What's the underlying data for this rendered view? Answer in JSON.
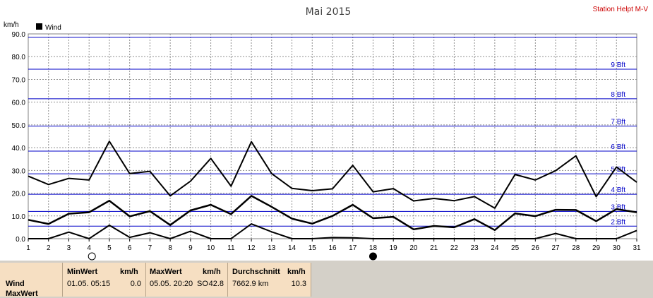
{
  "header": {
    "title": "Mai 2015",
    "station": "Station Helpt M-V",
    "unit": "km/h",
    "legend_label": "Wind"
  },
  "chart_data": {
    "type": "line",
    "title": "Mai 2015",
    "ylabel": "km/h",
    "xlabel": "",
    "ylim": [
      0,
      90
    ],
    "xlim": [
      1,
      31
    ],
    "x": [
      1,
      2,
      3,
      4,
      5,
      6,
      7,
      8,
      9,
      10,
      11,
      12,
      13,
      14,
      15,
      16,
      17,
      18,
      19,
      20,
      21,
      22,
      23,
      24,
      25,
      26,
      27,
      28,
      29,
      30,
      31
    ],
    "y_ticks": [
      "0.0",
      "10.0",
      "20.0",
      "30.0",
      "40.0",
      "50.0",
      "60.0",
      "70.0",
      "80.0",
      "90.0"
    ],
    "x_ticks": [
      "1",
      "2",
      "3",
      "4",
      "5",
      "6",
      "7",
      "8",
      "9",
      "10",
      "11",
      "12",
      "13",
      "14",
      "15",
      "16",
      "17",
      "18",
      "19",
      "20",
      "21",
      "22",
      "23",
      "24",
      "25",
      "26",
      "27",
      "28",
      "29",
      "30",
      "31"
    ],
    "grid": true,
    "legend": "top-left",
    "series": [
      {
        "name": "Wind",
        "role": "max",
        "values": [
          27.5,
          23.8,
          26.5,
          25.8,
          42.8,
          28.6,
          29.6,
          18.8,
          25.3,
          35.3,
          23.1,
          42.6,
          28.6,
          22.1,
          21.1,
          21.9,
          32.2,
          20.6,
          22.0,
          16.6,
          17.7,
          16.7,
          18.5,
          13.4,
          28.2,
          25.8,
          29.9,
          36.4,
          18.5,
          31.5,
          24.8
        ]
      },
      {
        "name": "Wind",
        "role": "avg",
        "values": [
          8.3,
          6.5,
          11.0,
          11.6,
          16.7,
          9.8,
          12.1,
          6.0,
          12.4,
          14.9,
          10.8,
          18.8,
          14.0,
          8.8,
          6.6,
          10.0,
          14.9,
          9.0,
          9.6,
          4.1,
          5.6,
          5.0,
          8.6,
          3.8,
          11.1,
          9.9,
          12.7,
          12.6,
          7.7,
          13.0,
          11.6
        ]
      },
      {
        "name": "Wind",
        "role": "min",
        "values": [
          0.0,
          0.0,
          2.9,
          0.0,
          5.9,
          0.6,
          2.6,
          0.0,
          3.3,
          0.0,
          0.0,
          6.5,
          3.0,
          0.0,
          0.0,
          0.5,
          0.4,
          0.0,
          0.0,
          0.0,
          0.0,
          0.0,
          0.0,
          0.0,
          0.0,
          0.0,
          2.3,
          0.0,
          0.0,
          0.0,
          3.6
        ]
      }
    ],
    "beaufort_lines": [
      {
        "label": "2 Bft",
        "value": 5.5
      },
      {
        "label": "3 Bft",
        "value": 12.0
      },
      {
        "label": "4 Bft",
        "value": 19.5
      },
      {
        "label": "5 Bft",
        "value": 28.5
      },
      {
        "label": "6 Bft",
        "value": 38.5
      },
      {
        "label": "7 Bft",
        "value": 49.5
      },
      {
        "label": "8 Bft",
        "value": 61.5
      },
      {
        "label": "9 Bft",
        "value": 74.5
      },
      {
        "label": "",
        "value": 88.5
      }
    ],
    "moon_phases": [
      {
        "day": 4,
        "phase": "full-moon"
      },
      {
        "day": 18,
        "phase": "new-moon"
      }
    ],
    "colors": {
      "line": "#000000",
      "beaufort": "#0000c8",
      "grid": "#808080",
      "title": "#404040",
      "station": "#cc0000"
    }
  },
  "info_table": {
    "rows": [
      "Wind",
      "MaxWert"
    ],
    "min": {
      "header": "MinWert",
      "unit": "km/h",
      "time": "01.05.  05:15",
      "value": "0.0"
    },
    "max": {
      "header": "MaxWert",
      "unit": "km/h",
      "time": "05.05.  20:20",
      "dir": "SO",
      "value": "42.8"
    },
    "avg": {
      "header": "Durchschnitt",
      "unit": "km/h",
      "distance": "7662.9 km",
      "value": "10.3"
    }
  }
}
